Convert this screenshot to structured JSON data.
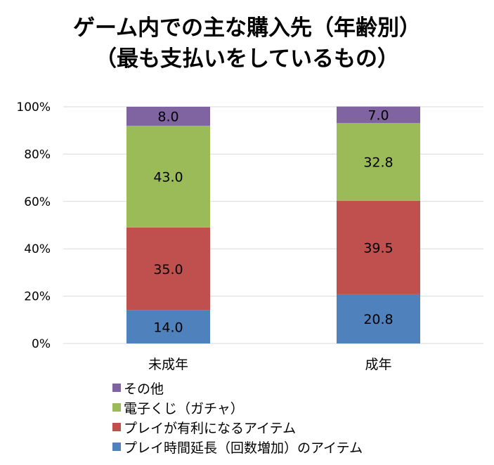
{
  "chart_data": {
    "type": "bar",
    "stacked": true,
    "title_line1": "ゲーム内での主な購入先（年齢別）",
    "title_line2": "（最も支払いをしているもの）",
    "categories": [
      "未成年",
      "成年"
    ],
    "ylim": [
      0,
      100
    ],
    "yticks": [
      "0%",
      "20%",
      "40%",
      "60%",
      "80%",
      "100%"
    ],
    "series": [
      {
        "name": "プレイ時間延長（回数増加）のアイテム",
        "color": "#4F81BD",
        "values": [
          14.0,
          20.8
        ],
        "labels": [
          "14.0",
          "20.8"
        ]
      },
      {
        "name": "プレイが有利になるアイテム",
        "color": "#C0504D",
        "values": [
          35.0,
          39.5
        ],
        "labels": [
          "35.0",
          "39.5"
        ]
      },
      {
        "name": "電子くじ（ガチャ）",
        "color": "#9BBB59",
        "values": [
          43.0,
          32.8
        ],
        "labels": [
          "43.0",
          "32.8"
        ]
      },
      {
        "name": "その他",
        "color": "#8064A2",
        "values": [
          8.0,
          7.0
        ],
        "labels": [
          "8.0",
          "7.0"
        ]
      }
    ],
    "legend_order": [
      3,
      2,
      1,
      0
    ],
    "grid": true,
    "gridline_color": "#D9D9D9"
  }
}
